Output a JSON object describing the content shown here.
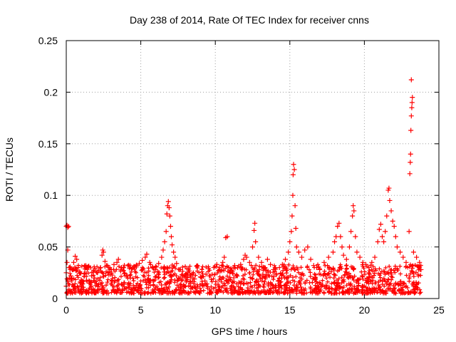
{
  "chart_data": {
    "type": "scatter",
    "title": "Day 238 of 2014, Rate Of TEC Index for receiver cnns",
    "xlabel": "GPS time / hours",
    "ylabel": "ROTI / TECUs",
    "xlim": [
      0,
      25
    ],
    "ylim": [
      0,
      0.25
    ],
    "grid": true,
    "marker": "+",
    "color": "#ff0000",
    "x_ticks": [
      {
        "value": 0,
        "label": "0"
      },
      {
        "value": 5,
        "label": "5"
      },
      {
        "value": 10,
        "label": "10"
      },
      {
        "value": 15,
        "label": "15"
      },
      {
        "value": 20,
        "label": "20"
      },
      {
        "value": 25,
        "label": "25"
      }
    ],
    "y_ticks": [
      {
        "value": 0,
        "label": "0"
      },
      {
        "value": 0.05,
        "label": "0.05"
      },
      {
        "value": 0.1,
        "label": "0.1"
      },
      {
        "value": 0.15,
        "label": "0.15"
      },
      {
        "value": 0.2,
        "label": "0.2"
      },
      {
        "value": 0.25,
        "label": "0.25"
      }
    ],
    "series": [
      {
        "name": "ROTI",
        "points": [
          [
            0.0,
            0.07
          ],
          [
            0.05,
            0.071
          ],
          [
            0.1,
            0.069
          ],
          [
            0.15,
            0.07
          ],
          [
            0.1,
            0.047
          ],
          [
            0.05,
            0.035
          ],
          [
            0.0,
            0.025
          ],
          [
            0.1,
            0.018
          ],
          [
            0.0,
            0.012
          ],
          [
            0.2,
            0.03
          ],
          [
            0.3,
            0.022
          ],
          [
            0.4,
            0.028
          ],
          [
            0.5,
            0.035
          ],
          [
            0.6,
            0.041
          ],
          [
            0.7,
            0.038
          ],
          [
            0.8,
            0.03
          ],
          [
            0.9,
            0.026
          ],
          [
            1.0,
            0.018
          ],
          [
            1.2,
            0.024
          ],
          [
            1.4,
            0.03
          ],
          [
            1.5,
            0.031
          ],
          [
            1.7,
            0.022
          ],
          [
            1.9,
            0.02
          ],
          [
            2.1,
            0.025
          ],
          [
            2.3,
            0.03
          ],
          [
            2.4,
            0.042
          ],
          [
            2.45,
            0.047
          ],
          [
            2.5,
            0.045
          ],
          [
            2.6,
            0.036
          ],
          [
            2.8,
            0.025
          ],
          [
            3.0,
            0.028
          ],
          [
            3.2,
            0.033
          ],
          [
            3.4,
            0.035
          ],
          [
            3.5,
            0.038
          ],
          [
            3.7,
            0.03
          ],
          [
            3.9,
            0.024
          ],
          [
            4.1,
            0.022
          ],
          [
            4.3,
            0.02
          ],
          [
            4.5,
            0.03
          ],
          [
            4.7,
            0.032
          ],
          [
            4.9,
            0.034
          ],
          [
            5.1,
            0.037
          ],
          [
            5.3,
            0.04
          ],
          [
            5.4,
            0.043
          ],
          [
            5.6,
            0.035
          ],
          [
            5.8,
            0.03
          ],
          [
            6.0,
            0.028
          ],
          [
            6.2,
            0.034
          ],
          [
            6.4,
            0.04
          ],
          [
            6.5,
            0.047
          ],
          [
            6.6,
            0.055
          ],
          [
            6.7,
            0.065
          ],
          [
            6.75,
            0.082
          ],
          [
            6.8,
            0.09
          ],
          [
            6.85,
            0.094
          ],
          [
            6.9,
            0.088
          ],
          [
            6.95,
            0.08
          ],
          [
            7.0,
            0.07
          ],
          [
            7.05,
            0.06
          ],
          [
            7.1,
            0.052
          ],
          [
            7.2,
            0.045
          ],
          [
            7.3,
            0.04
          ],
          [
            7.4,
            0.034
          ],
          [
            7.6,
            0.028
          ],
          [
            7.8,
            0.022
          ],
          [
            8.0,
            0.02
          ],
          [
            8.3,
            0.023
          ],
          [
            8.6,
            0.019
          ],
          [
            9.0,
            0.021
          ],
          [
            9.3,
            0.017
          ],
          [
            9.6,
            0.022
          ],
          [
            9.9,
            0.03
          ],
          [
            10.1,
            0.033
          ],
          [
            10.3,
            0.028
          ],
          [
            10.5,
            0.035
          ],
          [
            10.6,
            0.04
          ],
          [
            10.7,
            0.059
          ],
          [
            10.8,
            0.06
          ],
          [
            10.9,
            0.03
          ],
          [
            11.1,
            0.027
          ],
          [
            11.3,
            0.032
          ],
          [
            11.5,
            0.03
          ],
          [
            11.7,
            0.033
          ],
          [
            11.9,
            0.038
          ],
          [
            12.0,
            0.042
          ],
          [
            12.1,
            0.04
          ],
          [
            12.3,
            0.035
          ],
          [
            12.5,
            0.05
          ],
          [
            12.6,
            0.066
          ],
          [
            12.65,
            0.073
          ],
          [
            12.7,
            0.055
          ],
          [
            12.9,
            0.04
          ],
          [
            13.1,
            0.035
          ],
          [
            13.3,
            0.03
          ],
          [
            13.5,
            0.038
          ],
          [
            13.7,
            0.033
          ],
          [
            13.9,
            0.028
          ],
          [
            14.1,
            0.024
          ],
          [
            14.3,
            0.03
          ],
          [
            14.5,
            0.033
          ],
          [
            14.7,
            0.038
          ],
          [
            14.9,
            0.045
          ],
          [
            15.0,
            0.055
          ],
          [
            15.1,
            0.065
          ],
          [
            15.15,
            0.08
          ],
          [
            15.2,
            0.1
          ],
          [
            15.22,
            0.12
          ],
          [
            15.25,
            0.13
          ],
          [
            15.3,
            0.125
          ],
          [
            15.35,
            0.09
          ],
          [
            15.4,
            0.068
          ],
          [
            15.45,
            0.05
          ],
          [
            15.6,
            0.045
          ],
          [
            15.8,
            0.04
          ],
          [
            16.0,
            0.047
          ],
          [
            16.2,
            0.05
          ],
          [
            16.4,
            0.038
          ],
          [
            16.6,
            0.032
          ],
          [
            16.8,
            0.03
          ],
          [
            17.0,
            0.028
          ],
          [
            17.3,
            0.035
          ],
          [
            17.6,
            0.04
          ],
          [
            17.9,
            0.045
          ],
          [
            18.0,
            0.055
          ],
          [
            18.1,
            0.06
          ],
          [
            18.2,
            0.07
          ],
          [
            18.3,
            0.073
          ],
          [
            18.4,
            0.06
          ],
          [
            18.5,
            0.05
          ],
          [
            18.6,
            0.042
          ],
          [
            18.8,
            0.038
          ],
          [
            19.0,
            0.05
          ],
          [
            19.1,
            0.065
          ],
          [
            19.2,
            0.08
          ],
          [
            19.25,
            0.09
          ],
          [
            19.3,
            0.085
          ],
          [
            19.4,
            0.06
          ],
          [
            19.5,
            0.045
          ],
          [
            19.7,
            0.04
          ],
          [
            19.9,
            0.035
          ],
          [
            20.1,
            0.033
          ],
          [
            20.3,
            0.03
          ],
          [
            20.5,
            0.035
          ],
          [
            20.7,
            0.04
          ],
          [
            20.9,
            0.055
          ],
          [
            21.0,
            0.067
          ],
          [
            21.1,
            0.072
          ],
          [
            21.2,
            0.06
          ],
          [
            21.3,
            0.055
          ],
          [
            21.4,
            0.065
          ],
          [
            21.5,
            0.08
          ],
          [
            21.6,
            0.105
          ],
          [
            21.65,
            0.107
          ],
          [
            21.7,
            0.095
          ],
          [
            21.8,
            0.085
          ],
          [
            21.9,
            0.075
          ],
          [
            22.0,
            0.07
          ],
          [
            22.1,
            0.06
          ],
          [
            22.2,
            0.05
          ],
          [
            22.4,
            0.045
          ],
          [
            22.6,
            0.04
          ],
          [
            22.8,
            0.035
          ],
          [
            23.0,
            0.065
          ],
          [
            23.05,
            0.121
          ],
          [
            23.08,
            0.132
          ],
          [
            23.1,
            0.14
          ],
          [
            23.12,
            0.163
          ],
          [
            23.15,
            0.177
          ],
          [
            23.18,
            0.185
          ],
          [
            23.2,
            0.19
          ],
          [
            23.22,
            0.195
          ],
          [
            23.15,
            0.212
          ],
          [
            23.3,
            0.045
          ],
          [
            23.5,
            0.04
          ],
          [
            23.7,
            0.035
          ],
          [
            23.8,
            0.028
          ]
        ]
      }
    ]
  }
}
